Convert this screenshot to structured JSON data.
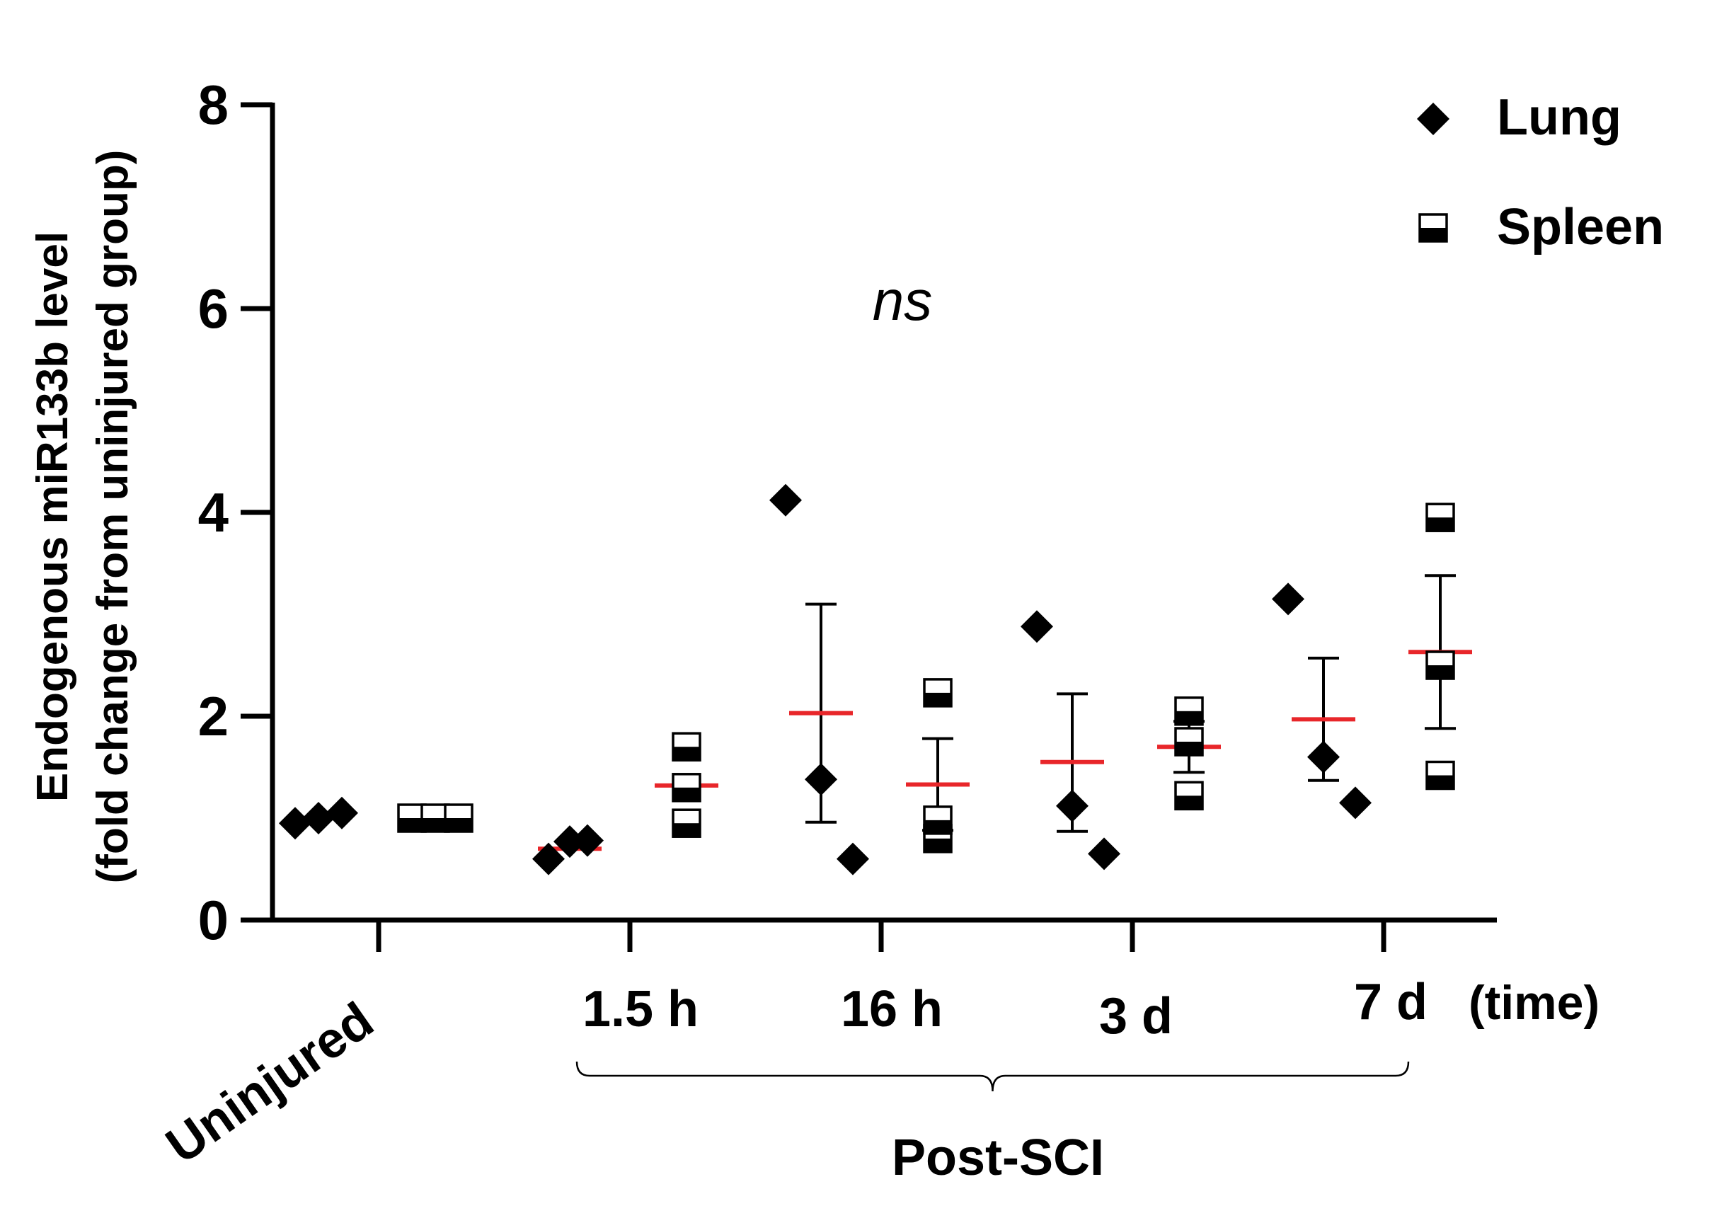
{
  "chart_data": {
    "type": "scatter",
    "title": "",
    "ylabel_line1": "Endogenous miR133b level",
    "ylabel_line2": "(fold change from uninjured group)",
    "xlabel": "(time)",
    "group_bracket_label": "Post-SCI",
    "annotation": "ns",
    "ylim": [
      0,
      8
    ],
    "yticks": [
      "0",
      "2",
      "4",
      "6",
      "8"
    ],
    "ytick_values": [
      0,
      2,
      4,
      6,
      8
    ],
    "categories": [
      "Uninjured",
      "1.5 h",
      "16 h",
      "3 d",
      "7 d"
    ],
    "legend": {
      "position": "top-right",
      "entries": [
        "Lung",
        "Spleen"
      ]
    },
    "series": [
      {
        "name": "Lung",
        "marker": "diamond",
        "points": [
          [
            0.95,
            1.0,
            1.05
          ],
          [
            0.6,
            0.77,
            0.78
          ],
          [
            4.12,
            1.38,
            0.6
          ],
          [
            2.88,
            1.12,
            0.65
          ],
          [
            3.15,
            1.6,
            1.15
          ]
        ],
        "mean": [
          1.0,
          0.7,
          2.03,
          1.55,
          1.97
        ],
        "err_low": [
          1.0,
          0.7,
          0.96,
          0.87,
          1.37
        ],
        "err_high": [
          1.0,
          0.7,
          3.1,
          2.22,
          2.57
        ]
      },
      {
        "name": "Spleen",
        "marker": "half-filled-square",
        "points": [
          [
            1.0,
            1.0,
            1.0
          ],
          [
            1.7,
            1.3,
            0.95
          ],
          [
            2.23,
            0.8,
            0.98
          ],
          [
            2.05,
            1.75,
            1.22
          ],
          [
            3.95,
            2.5,
            1.42
          ]
        ],
        "mean": [
          1.0,
          1.32,
          1.33,
          1.7,
          2.63
        ],
        "err_low": [
          1.0,
          1.32,
          0.88,
          1.45,
          1.88
        ],
        "err_high": [
          1.0,
          1.32,
          1.78,
          1.95,
          3.38
        ]
      }
    ]
  },
  "colors": {
    "axis": "#000000",
    "mean_line": "#e8262a",
    "marker": "#000000"
  }
}
